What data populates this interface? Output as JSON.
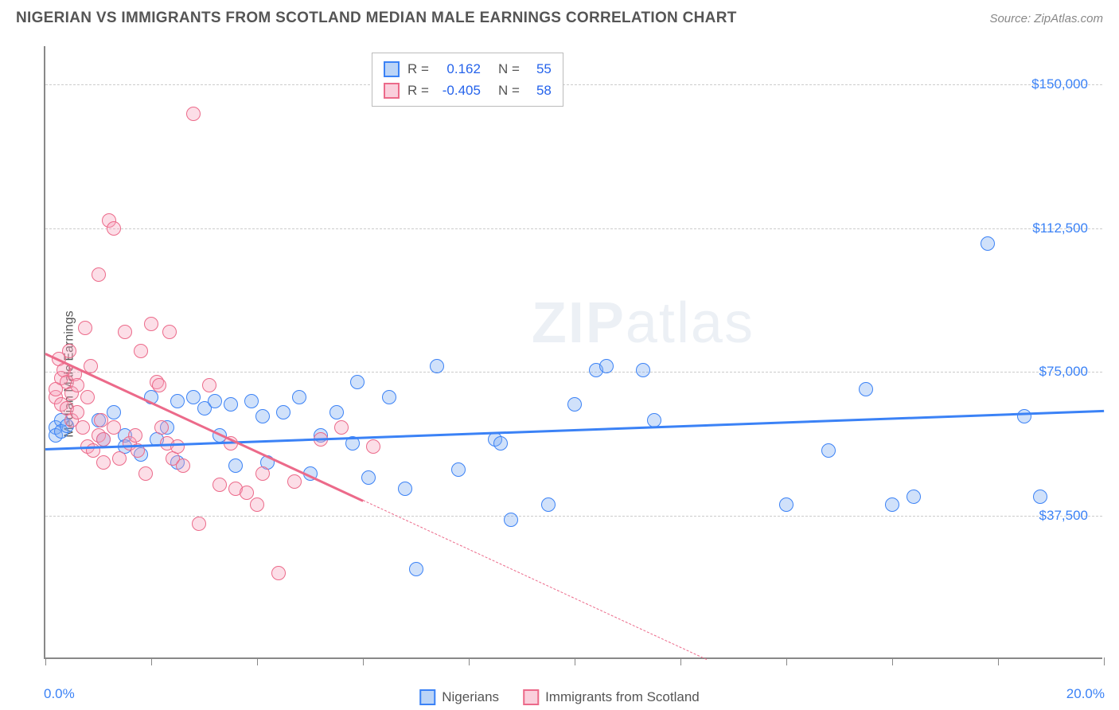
{
  "title": "NIGERIAN VS IMMIGRANTS FROM SCOTLAND MEDIAN MALE EARNINGS CORRELATION CHART",
  "source": "Source: ZipAtlas.com",
  "ylabel": "Median Male Earnings",
  "watermark_a": "ZIP",
  "watermark_b": "atlas",
  "chart": {
    "type": "scatter-correlation",
    "background": "#ffffff",
    "grid_color": "#cccccc",
    "axis_color": "#888888",
    "xlim": [
      0,
      20
    ],
    "ylim": [
      0,
      160000
    ],
    "x_tick_positions_pct": [
      0,
      10,
      20,
      30,
      40,
      50,
      60,
      70,
      80,
      90,
      100
    ],
    "y_grid_values": [
      37500,
      75000,
      112500,
      150000
    ],
    "y_tick_labels": [
      "$37,500",
      "$75,000",
      "$112,500",
      "$150,000"
    ],
    "x_min_label": "0.0%",
    "x_max_label": "20.0%",
    "marker_radius": 9,
    "marker_stroke_width": 1.5,
    "marker_fill_opacity": 0.35,
    "trendline_width": 2.5
  },
  "series": [
    {
      "key": "nigerians",
      "label": "Nigerians",
      "color_stroke": "#3b82f6",
      "color_fill": "rgba(120,170,240,0.35)",
      "swatch_fill": "rgba(120,170,240,0.5)",
      "R": "0.162",
      "N": "55",
      "trend": {
        "x1": 0,
        "y1": 55000,
        "x2": 20,
        "y2": 65000,
        "dash_after_x": null
      },
      "points": [
        [
          0.2,
          60000
        ],
        [
          0.2,
          58000
        ],
        [
          0.3,
          62000
        ],
        [
          0.3,
          59000
        ],
        [
          0.4,
          60500
        ],
        [
          1.0,
          62000
        ],
        [
          1.1,
          57000
        ],
        [
          1.3,
          64000
        ],
        [
          1.5,
          58000
        ],
        [
          1.5,
          55000
        ],
        [
          1.8,
          53000
        ],
        [
          2.0,
          68000
        ],
        [
          2.1,
          57000
        ],
        [
          2.3,
          60000
        ],
        [
          2.5,
          67000
        ],
        [
          2.5,
          51000
        ],
        [
          2.8,
          68000
        ],
        [
          3.0,
          65000
        ],
        [
          3.2,
          67000
        ],
        [
          3.3,
          58000
        ],
        [
          3.5,
          66000
        ],
        [
          3.6,
          50000
        ],
        [
          3.9,
          67000
        ],
        [
          4.1,
          63000
        ],
        [
          4.2,
          51000
        ],
        [
          4.5,
          64000
        ],
        [
          4.8,
          68000
        ],
        [
          5.0,
          48000
        ],
        [
          5.2,
          58000
        ],
        [
          5.5,
          64000
        ],
        [
          5.8,
          56000
        ],
        [
          5.9,
          72000
        ],
        [
          6.1,
          47000
        ],
        [
          6.5,
          68000
        ],
        [
          6.8,
          44000
        ],
        [
          7.0,
          23000
        ],
        [
          7.4,
          76000
        ],
        [
          7.8,
          49000
        ],
        [
          8.5,
          57000
        ],
        [
          8.6,
          56000
        ],
        [
          8.8,
          36000
        ],
        [
          9.5,
          40000
        ],
        [
          10.0,
          66000
        ],
        [
          10.4,
          75000
        ],
        [
          10.6,
          76000
        ],
        [
          11.3,
          75000
        ],
        [
          11.5,
          62000
        ],
        [
          14.0,
          40000
        ],
        [
          14.8,
          54000
        ],
        [
          15.5,
          70000
        ],
        [
          16.0,
          40000
        ],
        [
          16.4,
          42000
        ],
        [
          17.8,
          108000
        ],
        [
          18.5,
          63000
        ],
        [
          18.8,
          42000
        ]
      ]
    },
    {
      "key": "scotland",
      "label": "Immigrants from Scotland",
      "color_stroke": "#ec6a8a",
      "color_fill": "rgba(245,160,185,0.35)",
      "swatch_fill": "rgba(245,160,185,0.5)",
      "R": "-0.405",
      "N": "58",
      "trend": {
        "x1": 0,
        "y1": 80000,
        "x2": 12.5,
        "y2": 0,
        "dash_after_x": 6.0
      },
      "points": [
        [
          0.2,
          68000
        ],
        [
          0.2,
          70000
        ],
        [
          0.25,
          78000
        ],
        [
          0.3,
          73000
        ],
        [
          0.3,
          66000
        ],
        [
          0.35,
          75000
        ],
        [
          0.4,
          72000
        ],
        [
          0.4,
          65000
        ],
        [
          0.45,
          80000
        ],
        [
          0.5,
          69000
        ],
        [
          0.5,
          62000
        ],
        [
          0.55,
          74000
        ],
        [
          0.6,
          64000
        ],
        [
          0.6,
          71000
        ],
        [
          0.7,
          60000
        ],
        [
          0.75,
          86000
        ],
        [
          0.8,
          55000
        ],
        [
          0.8,
          68000
        ],
        [
          0.85,
          76000
        ],
        [
          0.9,
          54000
        ],
        [
          1.0,
          100000
        ],
        [
          1.0,
          58000
        ],
        [
          1.05,
          62000
        ],
        [
          1.1,
          57000
        ],
        [
          1.1,
          51000
        ],
        [
          1.2,
          114000
        ],
        [
          1.3,
          112000
        ],
        [
          1.3,
          60000
        ],
        [
          1.4,
          52000
        ],
        [
          1.5,
          85000
        ],
        [
          1.6,
          56000
        ],
        [
          1.7,
          58000
        ],
        [
          1.75,
          54000
        ],
        [
          1.8,
          80000
        ],
        [
          1.9,
          48000
        ],
        [
          2.0,
          87000
        ],
        [
          2.1,
          72000
        ],
        [
          2.15,
          71000
        ],
        [
          2.2,
          60000
        ],
        [
          2.3,
          56000
        ],
        [
          2.35,
          85000
        ],
        [
          2.4,
          52000
        ],
        [
          2.5,
          55000
        ],
        [
          2.6,
          50000
        ],
        [
          2.8,
          142000
        ],
        [
          2.9,
          35000
        ],
        [
          3.1,
          71000
        ],
        [
          3.3,
          45000
        ],
        [
          3.5,
          56000
        ],
        [
          3.6,
          44000
        ],
        [
          3.8,
          43000
        ],
        [
          4.0,
          40000
        ],
        [
          4.1,
          48000
        ],
        [
          4.4,
          22000
        ],
        [
          4.7,
          46000
        ],
        [
          5.2,
          57000
        ],
        [
          5.6,
          60000
        ],
        [
          6.2,
          55000
        ]
      ]
    }
  ],
  "stats_box": {
    "rows": [
      {
        "series_key": "nigerians",
        "R_label": "R =",
        "N_label": "N ="
      },
      {
        "series_key": "scotland",
        "R_label": "R =",
        "N_label": "N ="
      }
    ]
  }
}
